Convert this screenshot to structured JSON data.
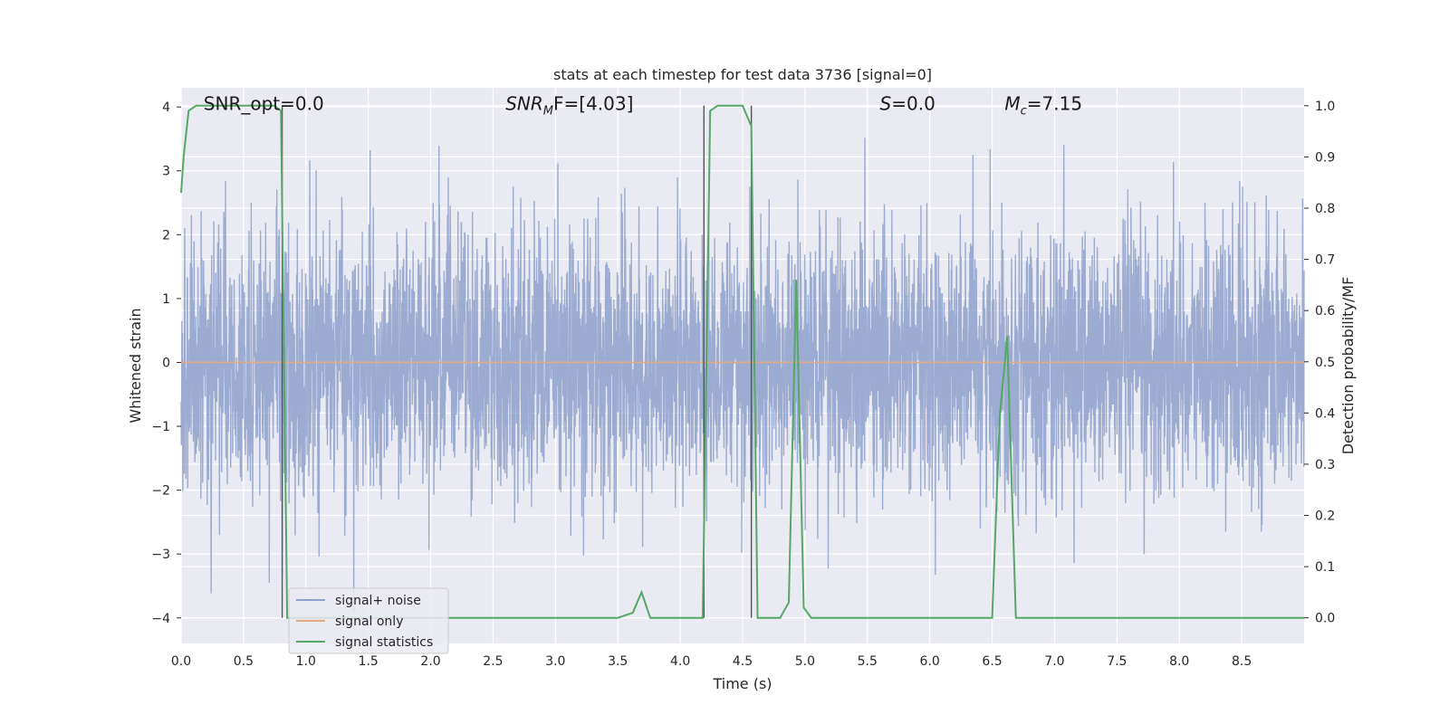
{
  "chart_data": {
    "type": "line",
    "title": "stats at each timestep for test data 3736 [signal=0]",
    "xlabel": "Time (s)",
    "ylabel_left": "Whitened strain",
    "ylabel_right": "Detection probability/MF",
    "xlim": [
      0,
      9.0
    ],
    "ylim_left": [
      -4.4,
      4.3
    ],
    "ylim_right": [
      -0.05,
      1.035
    ],
    "x_ticks": [
      "0.0",
      "0.5",
      "1.0",
      "1.5",
      "2.0",
      "2.5",
      "3.0",
      "3.5",
      "4.0",
      "4.5",
      "5.0",
      "5.5",
      "6.0",
      "6.5",
      "7.0",
      "7.5",
      "8.0",
      "8.5"
    ],
    "x_tick_values": [
      0,
      0.5,
      1.0,
      1.5,
      2.0,
      2.5,
      3.0,
      3.5,
      4.0,
      4.5,
      5.0,
      5.5,
      6.0,
      6.5,
      7.0,
      7.5,
      8.0,
      8.5
    ],
    "y_ticks_left": [
      "4",
      "3",
      "2",
      "1",
      "0",
      "−1",
      "−2",
      "−3",
      "−4"
    ],
    "y_tick_values_left": [
      4,
      3,
      2,
      1,
      0,
      -1,
      -2,
      -3,
      -4
    ],
    "y_ticks_right": [
      "1.0",
      "0.9",
      "0.8",
      "0.7",
      "0.6",
      "0.5",
      "0.4",
      "0.3",
      "0.2",
      "0.1",
      "0.0"
    ],
    "y_tick_values_right": [
      1.0,
      0.9,
      0.8,
      0.7,
      0.6,
      0.5,
      0.4,
      0.3,
      0.2,
      0.1,
      0.0
    ],
    "grid": true,
    "legend_placement": "lower-left",
    "annotations": [
      {
        "text": "SNR_opt=0.0",
        "x": 0.18,
        "y": 4.05
      },
      {
        "text": "SNR_MF=[4.03]",
        "x": 2.6,
        "y": 4.05,
        "base": "SNR",
        "sub": "M",
        "tail": "F=[4.03]"
      },
      {
        "text": "S=0.0",
        "x": 5.6,
        "y": 4.05,
        "base": "S",
        "tail": "=0.0"
      },
      {
        "text": "M_c=7.15",
        "x": 6.6,
        "y": 4.05,
        "base": "M",
        "sub": "c",
        "tail": "=7.15"
      }
    ],
    "vlines": [
      0.81,
      4.19,
      4.57
    ],
    "series": [
      {
        "name": "signal+ noise",
        "color": "#8da0cb",
        "axis": "left",
        "noise": {
          "sigma": 1.0,
          "n_points": 4600,
          "seed": 3736
        }
      },
      {
        "name": "signal only",
        "color": "#e5a882",
        "axis": "left",
        "x": [
          0,
          9.0
        ],
        "y": [
          0,
          0
        ]
      },
      {
        "name": "signal statistics",
        "color": "#55a868",
        "axis": "right",
        "x": [
          0.0,
          0.02,
          0.06,
          0.12,
          0.5,
          0.75,
          0.8,
          0.85,
          0.9,
          1.0,
          3.5,
          3.62,
          3.69,
          3.76,
          4.18,
          4.24,
          4.3,
          4.36,
          4.5,
          4.57,
          4.62,
          4.8,
          4.87,
          4.93,
          4.99,
          5.05,
          6.5,
          6.56,
          6.62,
          6.69,
          7.0,
          9.0
        ],
        "y": [
          0.83,
          0.9,
          0.99,
          1.0,
          1.0,
          1.0,
          0.99,
          0.0,
          0.0,
          0.0,
          0.0,
          0.01,
          0.05,
          0.0,
          0.0,
          0.99,
          1.0,
          1.0,
          1.0,
          0.96,
          0.0,
          0.0,
          0.03,
          0.66,
          0.02,
          0.0,
          0.0,
          0.39,
          0.55,
          0.0,
          0.0,
          0.0
        ]
      }
    ]
  }
}
